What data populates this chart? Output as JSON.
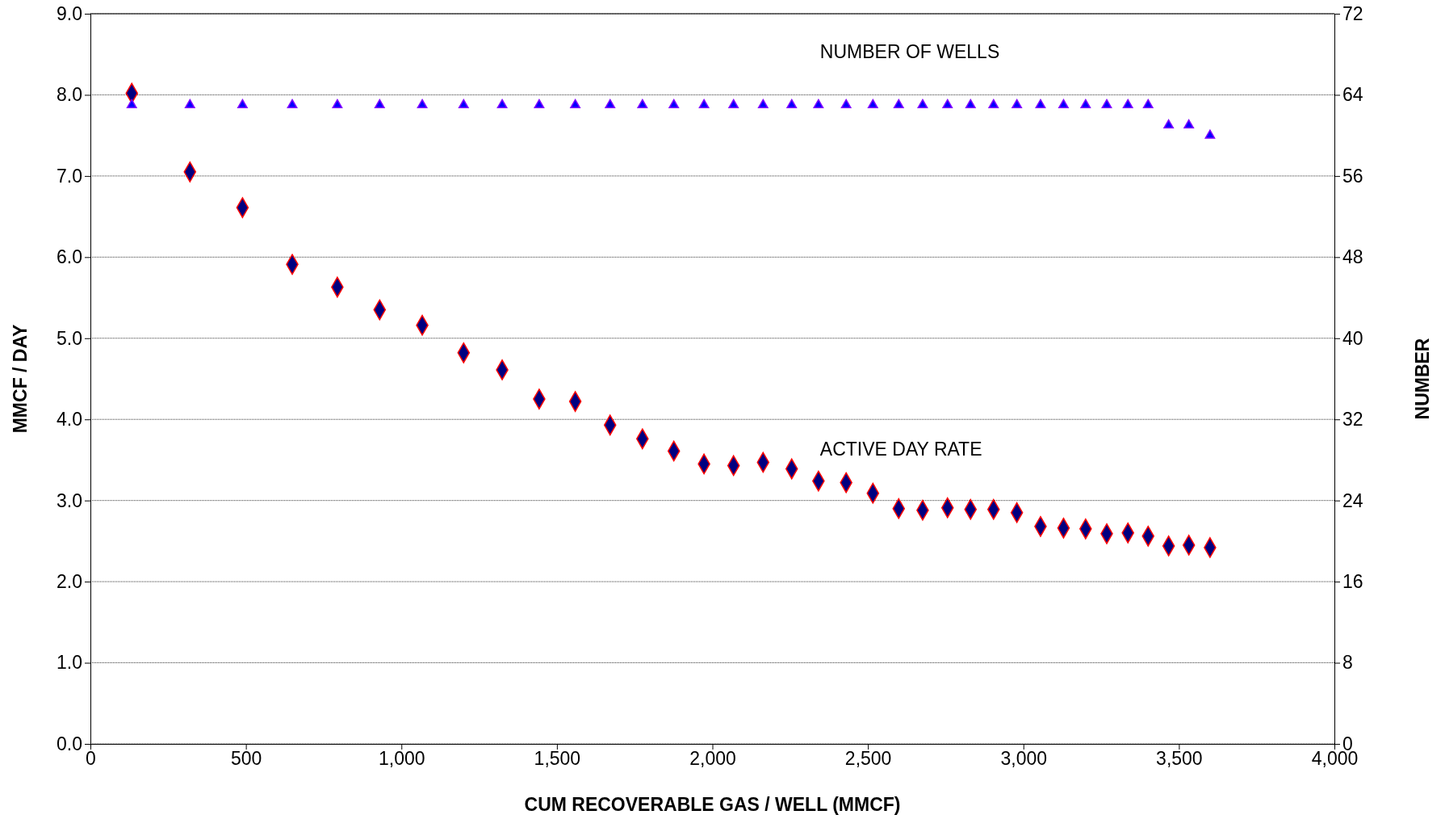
{
  "chart_data": {
    "type": "scatter",
    "xlabel": "CUM RECOVERABLE GAS / WELL (MMCF)",
    "ylabel": "MMCF / DAY",
    "y2label": "NUMBER",
    "x": [
      133,
      320,
      489,
      649,
      794,
      930,
      1067,
      1200,
      1324,
      1443,
      1559,
      1671,
      1775,
      1876,
      1973,
      2068,
      2163,
      2255,
      2341,
      2430,
      2516,
      2599,
      2676,
      2756,
      2830,
      2904,
      2979,
      3055,
      3129,
      3200,
      3268,
      3336,
      3401,
      3467,
      3532,
      3600
    ],
    "series": [
      {
        "name": "ACTIVE DAY RATE",
        "color": "#000080",
        "marker": "diamond",
        "values": [
          8.02,
          7.05,
          6.61,
          5.91,
          5.63,
          5.35,
          5.16,
          4.82,
          4.61,
          4.25,
          4.22,
          3.93,
          3.76,
          3.61,
          3.45,
          3.43,
          3.47,
          3.39,
          3.24,
          3.22,
          3.09,
          2.9,
          2.88,
          2.91,
          2.89,
          2.89,
          2.85,
          2.68,
          2.66,
          2.65,
          2.59,
          2.6,
          2.56,
          2.44,
          2.45,
          2.42
        ]
      },
      {
        "name": "NUMBER OF WELLS",
        "color": "#0000ff",
        "marker": "triangle",
        "axis": "y2",
        "values": [
          63,
          63,
          63,
          63,
          63,
          63,
          63,
          63,
          63,
          63,
          63,
          63,
          63,
          63,
          63,
          63,
          63,
          63,
          63,
          63,
          63,
          63,
          63,
          63,
          63,
          63,
          63,
          63,
          63,
          63,
          63,
          63,
          63,
          61,
          61,
          60
        ]
      }
    ],
    "xlim": [
      0,
      4000
    ],
    "xticks": [
      0,
      {
        "value": 500,
        "label": "500"
      },
      {
        "value": 1000,
        "label": "1,000"
      },
      {
        "value": 1500,
        "label": "1,500"
      },
      {
        "value": 2000,
        "label": "2,000"
      },
      {
        "value": 2500,
        "label": "2,500"
      },
      {
        "value": 3000,
        "label": "3,000"
      },
      {
        "value": 3500,
        "label": "3,500"
      },
      {
        "value": 4000,
        "label": "4,000"
      }
    ],
    "ylim": [
      0,
      9
    ],
    "yticks": [
      {
        "value": 0,
        "label": "0.0"
      },
      {
        "value": 1,
        "label": "1.0"
      },
      {
        "value": 2,
        "label": "2.0"
      },
      {
        "value": 3,
        "label": "3.0"
      },
      {
        "value": 4,
        "label": "4.0"
      },
      {
        "value": 5,
        "label": "5.0"
      },
      {
        "value": 6,
        "label": "6.0"
      },
      {
        "value": 7,
        "label": "7.0"
      },
      {
        "value": 8,
        "label": "8.0"
      },
      {
        "value": 9,
        "label": "9.0"
      }
    ],
    "y2lim": [
      0,
      72
    ],
    "y2ticks": [
      0,
      8,
      16,
      24,
      32,
      40,
      48,
      56,
      64,
      72
    ],
    "grid": "y"
  }
}
